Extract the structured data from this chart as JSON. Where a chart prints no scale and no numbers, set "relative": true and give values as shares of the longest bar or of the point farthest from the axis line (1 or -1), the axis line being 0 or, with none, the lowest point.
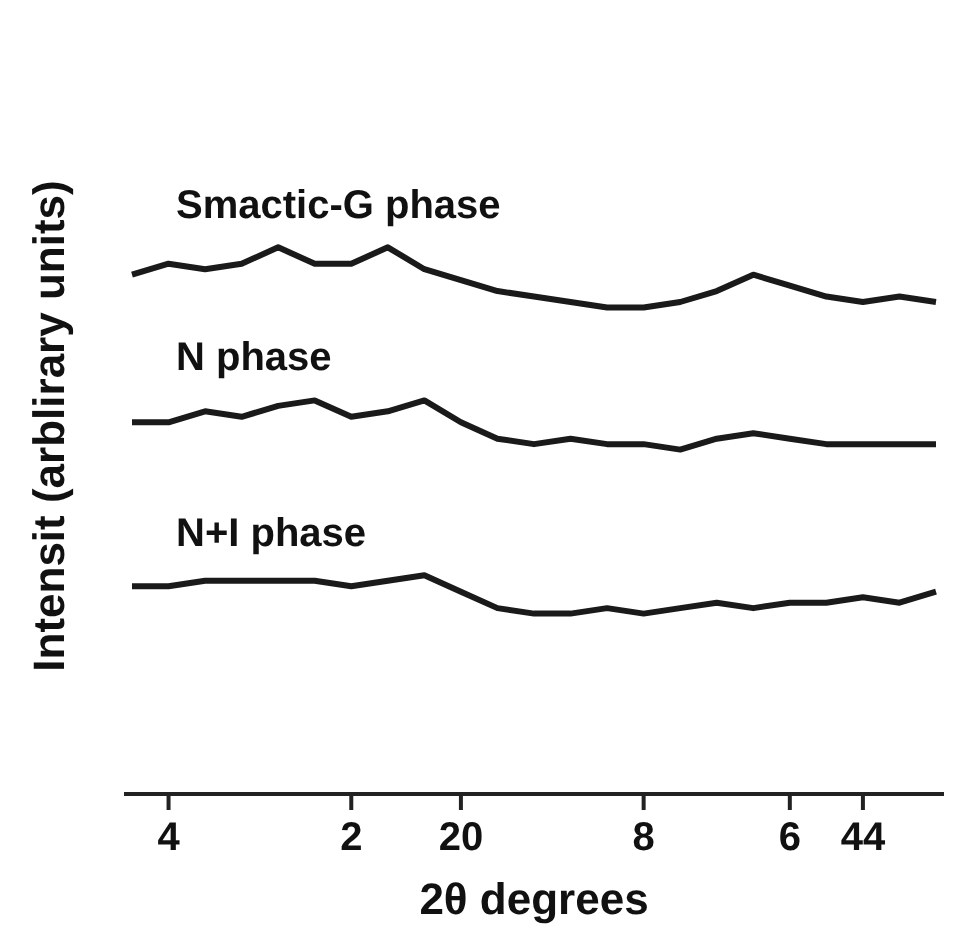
{
  "chart_data": {
    "type": "line",
    "relative": true,
    "xlabel": "2θ  degrees",
    "ylabel": "Intensit (arblirary units)",
    "categories": [
      null,
      "4",
      null,
      null,
      null,
      null,
      "2",
      null,
      null,
      "20",
      null,
      null,
      null,
      null,
      "8",
      null,
      null,
      null,
      "6",
      null,
      "44",
      null,
      null
    ],
    "marker": "none",
    "series": [
      {
        "name": "Smactic-G phase",
        "color": "#1a1a1a",
        "values": [
          0.95,
          0.97,
          0.96,
          0.97,
          1.0,
          0.97,
          0.97,
          1.0,
          0.96,
          0.94,
          0.92,
          0.91,
          0.9,
          0.89,
          0.89,
          0.9,
          0.92,
          0.95,
          0.93,
          0.91,
          0.9,
          0.91,
          0.9
        ]
      },
      {
        "name": "N phase",
        "color": "#1a1a1a",
        "values": [
          0.68,
          0.68,
          0.7,
          0.69,
          0.71,
          0.72,
          0.69,
          0.7,
          0.72,
          0.68,
          0.65,
          0.64,
          0.65,
          0.64,
          0.64,
          0.63,
          0.65,
          0.66,
          0.65,
          0.64,
          0.64,
          0.64,
          0.64
        ]
      },
      {
        "name": "N+I phase",
        "color": "#1a1a1a",
        "values": [
          0.38,
          0.38,
          0.39,
          0.39,
          0.39,
          0.39,
          0.38,
          0.39,
          0.4,
          0.37,
          0.34,
          0.33,
          0.33,
          0.34,
          0.33,
          0.34,
          0.35,
          0.34,
          0.35,
          0.35,
          0.36,
          0.35,
          0.37
        ]
      }
    ]
  }
}
